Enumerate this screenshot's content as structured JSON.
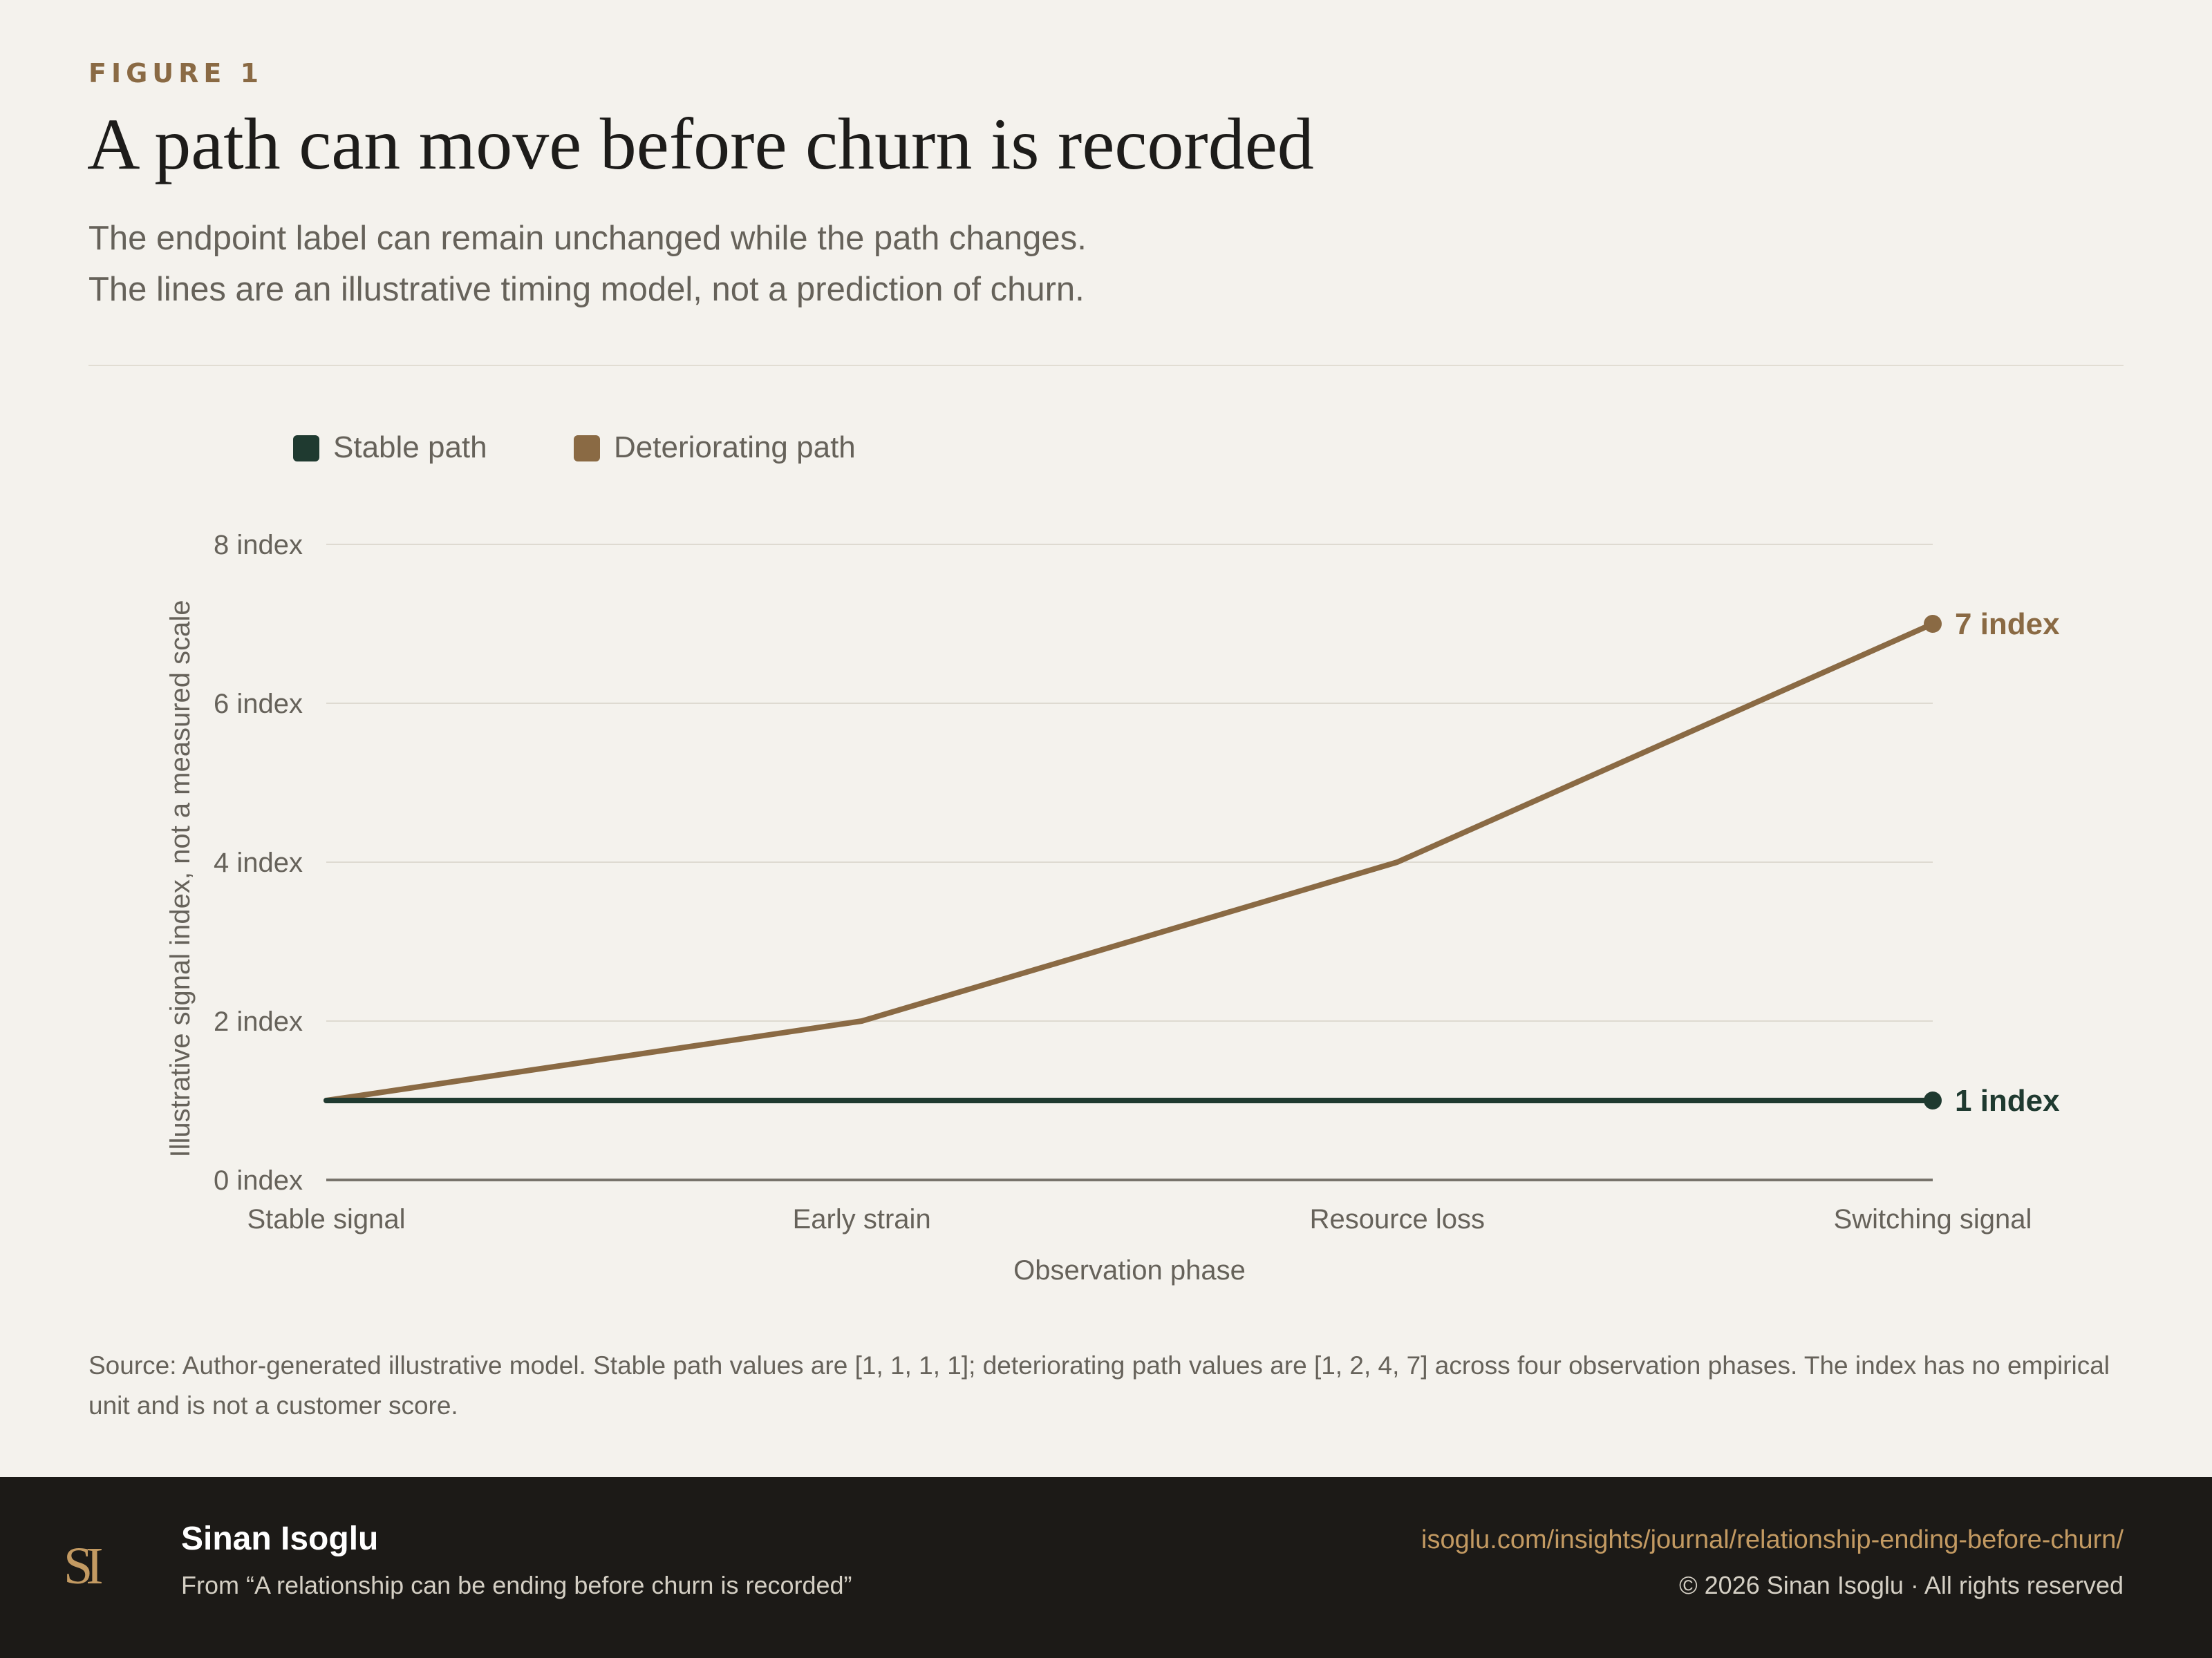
{
  "header": {
    "eyebrow": "FIGURE 1",
    "title": "A path can move before churn is recorded",
    "subtitle_lines": [
      "The endpoint label can remain unchanged while the path changes.",
      "The lines are an illustrative timing model, not a prediction of churn."
    ]
  },
  "chart_data": {
    "type": "line",
    "categories": [
      "Stable signal",
      "Early strain",
      "Resource loss",
      "Switching signal"
    ],
    "xlabel": "Observation phase",
    "ylabel": "Illustrative signal index, not a measured scale",
    "ylim": [
      0,
      8
    ],
    "yticks": [
      0,
      2,
      4,
      6,
      8
    ],
    "ytick_labels": [
      "0 index",
      "2 index",
      "4 index",
      "6 index",
      "8 index"
    ],
    "grid": true,
    "legend_position": "top-left",
    "series": [
      {
        "name": "Stable path",
        "values": [
          1,
          1,
          1,
          1
        ],
        "color": "#1f3a30",
        "end_label": "1 index"
      },
      {
        "name": "Deteriorating path",
        "values": [
          1,
          2,
          4,
          7
        ],
        "color": "#8a6a44",
        "end_label": "7 index"
      }
    ]
  },
  "source_note": "Source: Author-generated illustrative model. Stable path values are [1, 1, 1, 1]; deteriorating path values are [1, 2, 4, 7] across four observation phases. The index has no empirical unit and is not a customer score.",
  "footer": {
    "logo_text": "SI",
    "author": "Sinan Isoglu",
    "article": "From “A relationship can be ending before churn is recorded”",
    "url": "isoglu.com/insights/journal/relationship-ending-before-churn/",
    "copyright": "© 2026 Sinan Isoglu · All rights reserved"
  }
}
